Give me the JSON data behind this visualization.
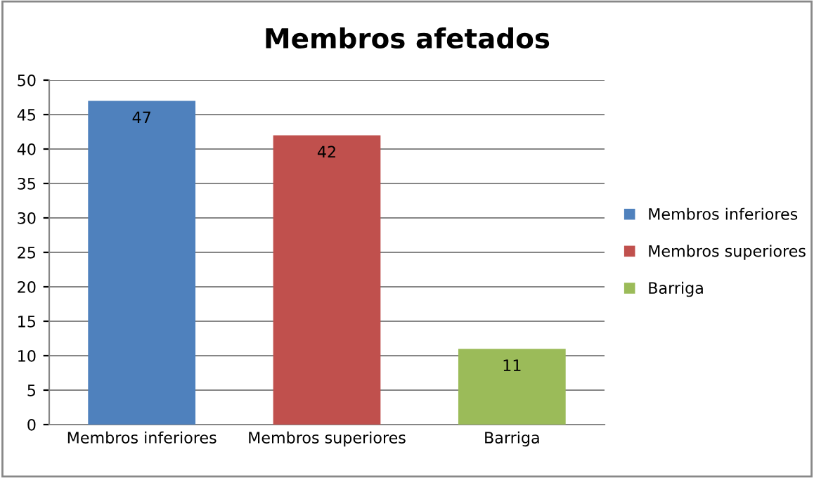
{
  "chart_data": {
    "type": "bar",
    "title": "Membros afetados",
    "categories": [
      "Membros inferiores",
      "Membros superiores",
      "Barriga"
    ],
    "series": [
      {
        "name": "Membros inferiores",
        "color": "#4f81bd",
        "values": [
          47,
          null,
          null
        ]
      },
      {
        "name": "Membros superiores",
        "color": "#c0504d",
        "values": [
          null,
          42,
          null
        ]
      },
      {
        "name": "Barriga",
        "color": "#9bbb59",
        "values": [
          null,
          null,
          11
        ]
      }
    ],
    "ylim": [
      0,
      50
    ],
    "yticks": [
      0,
      5,
      10,
      15,
      20,
      25,
      30,
      35,
      40,
      45,
      50
    ],
    "grid": "y",
    "legend": "right",
    "data_labels": true
  }
}
